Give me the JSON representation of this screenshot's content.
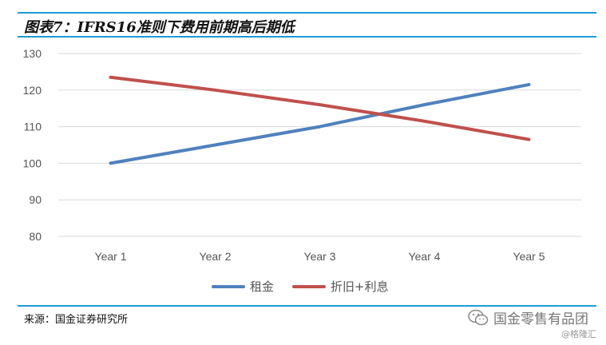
{
  "header": {
    "title": "图表7：IFRS16准则下费用前期高后期低"
  },
  "chart_data": {
    "type": "line",
    "title": "图表7：IFRS16准则下费用前期高后期低",
    "categories": [
      "Year 1",
      "Year 2",
      "Year 3",
      "Year 4",
      "Year 5"
    ],
    "series": [
      {
        "name": "租金",
        "color": "#4f81bd",
        "values": [
          100,
          105,
          110,
          116,
          121.5
        ]
      },
      {
        "name": "折旧+利息",
        "color": "#c0504d",
        "values": [
          123.5,
          120,
          116,
          111.5,
          106.5
        ]
      }
    ],
    "yticks": [
      "80",
      "90",
      "100",
      "110",
      "120",
      "130"
    ],
    "ylim": [
      80,
      130
    ],
    "grid": true,
    "legend": "bottom"
  },
  "footer": {
    "source": "来源：国金证券研究所"
  },
  "watermark": {
    "text": "国金零售有品团",
    "sub": "@格隆汇",
    "icon": "wechat-icon"
  }
}
